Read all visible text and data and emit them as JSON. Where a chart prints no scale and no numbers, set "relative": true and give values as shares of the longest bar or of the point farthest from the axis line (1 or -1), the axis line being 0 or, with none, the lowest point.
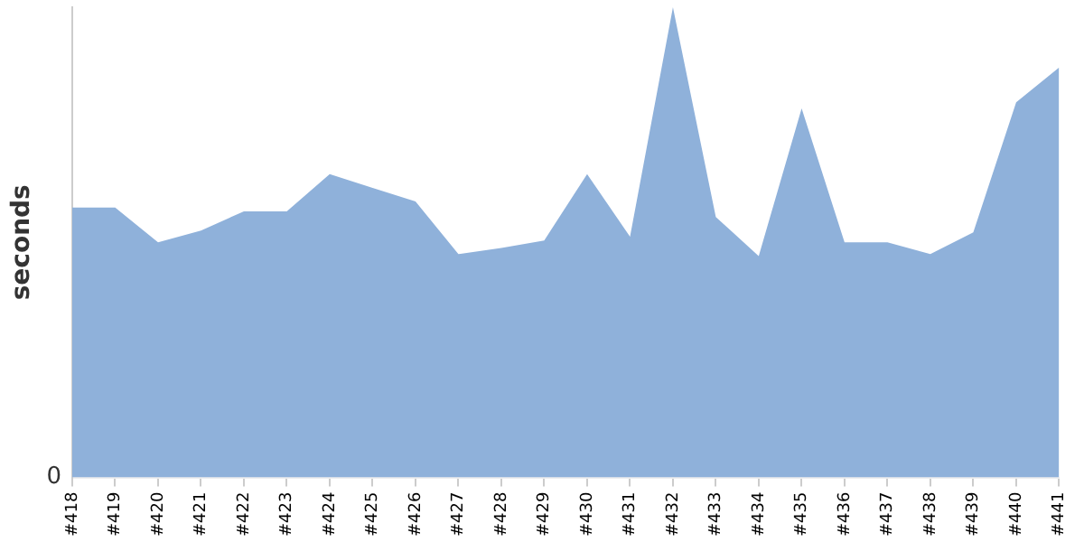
{
  "chart_data": {
    "type": "area",
    "ylabel": "seconds",
    "relative": true,
    "grid": false,
    "legend": false,
    "annotations": [
      "0"
    ],
    "categories": [
      "#418",
      "#419",
      "#420",
      "#421",
      "#422",
      "#423",
      "#424",
      "#425",
      "#426",
      "#427",
      "#428",
      "#429",
      "#430",
      "#431",
      "#432",
      "#433",
      "#434",
      "#435",
      "#436",
      "#437",
      "#438",
      "#439",
      "#440",
      "#441"
    ],
    "series": [
      {
        "color": "#8fb1da",
        "values": [
          0.574,
          0.574,
          0.5,
          0.525,
          0.566,
          0.566,
          0.645,
          0.616,
          0.587,
          0.475,
          0.488,
          0.504,
          0.645,
          0.512,
          1,
          0.554,
          0.471,
          0.785,
          0.5,
          0.5,
          0.475,
          0.521,
          0.798,
          0.872
        ]
      }
    ]
  }
}
